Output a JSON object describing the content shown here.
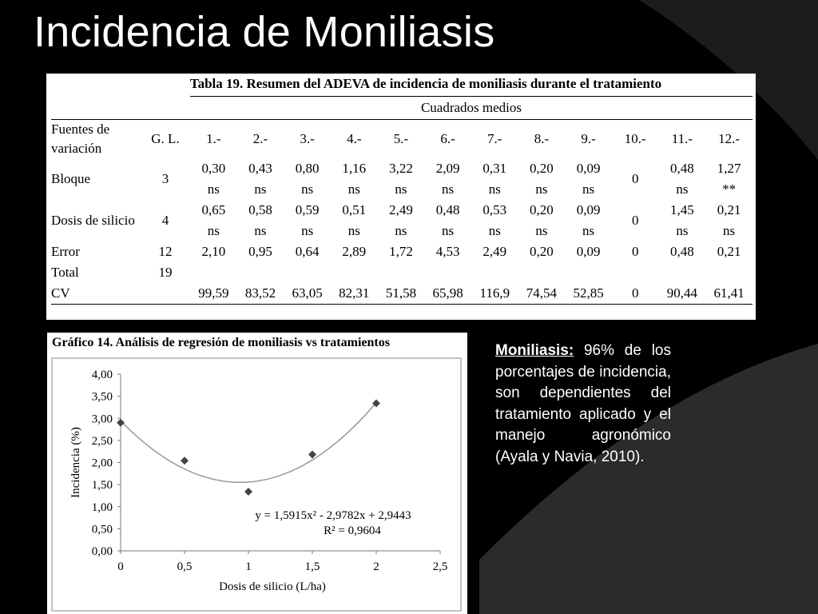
{
  "slide": {
    "title": "Incidencia de Moniliasis"
  },
  "colors": {
    "background": "#000000",
    "swoosh": "#2b2b2b",
    "title_text": "#ffffff",
    "marker": "#444444",
    "trend_line": "#999999"
  },
  "table": {
    "caption": "Tabla 19. Resumen del ADEVA de incidencia de moniliasis durante el tratamiento",
    "group_header": "Cuadrados medios",
    "headers": {
      "source": "Fuentes de variación",
      "df": "G. L.",
      "treatments": [
        "1.-",
        "2.-",
        "3.-",
        "4.-",
        "5.-",
        "6.-",
        "7.-",
        "8.-",
        "9.-",
        "10.-",
        "11.-",
        "12.-"
      ]
    },
    "rows": [
      {
        "source": "Bloque",
        "df": "3",
        "cells": [
          {
            "v": "0,30",
            "s": "ns"
          },
          {
            "v": "0,43",
            "s": "ns"
          },
          {
            "v": "0,80",
            "s": "ns"
          },
          {
            "v": "1,16",
            "s": "ns"
          },
          {
            "v": "3,22",
            "s": "ns"
          },
          {
            "v": "2,09",
            "s": "ns"
          },
          {
            "v": "0,31",
            "s": "ns"
          },
          {
            "v": "0,20",
            "s": "ns"
          },
          {
            "v": "0,09",
            "s": "ns"
          },
          {
            "v": "0",
            "s": ""
          },
          {
            "v": "0,48",
            "s": "ns"
          },
          {
            "v": "1,27",
            "s": "**"
          }
        ]
      },
      {
        "source": "Dosis de silicio",
        "df": "4",
        "cells": [
          {
            "v": "0,65",
            "s": "ns"
          },
          {
            "v": "0,58",
            "s": "ns"
          },
          {
            "v": "0,59",
            "s": "ns"
          },
          {
            "v": "0,51",
            "s": "ns"
          },
          {
            "v": "2,49",
            "s": "ns"
          },
          {
            "v": "0,48",
            "s": "ns"
          },
          {
            "v": "0,53",
            "s": "ns"
          },
          {
            "v": "0,20",
            "s": "ns"
          },
          {
            "v": "0,09",
            "s": "ns"
          },
          {
            "v": "0",
            "s": ""
          },
          {
            "v": "1,45",
            "s": "ns"
          },
          {
            "v": "0,21",
            "s": "ns"
          }
        ]
      },
      {
        "source": "Error",
        "df": "12",
        "cells": [
          {
            "v": "2,10",
            "s": ""
          },
          {
            "v": "0,95",
            "s": ""
          },
          {
            "v": "0,64",
            "s": ""
          },
          {
            "v": "2,89",
            "s": ""
          },
          {
            "v": "1,72",
            "s": ""
          },
          {
            "v": "4,53",
            "s": ""
          },
          {
            "v": "2,49",
            "s": ""
          },
          {
            "v": "0,20",
            "s": ""
          },
          {
            "v": "0,09",
            "s": ""
          },
          {
            "v": "0",
            "s": ""
          },
          {
            "v": "0,48",
            "s": ""
          },
          {
            "v": "0,21",
            "s": ""
          }
        ]
      },
      {
        "source": "Total",
        "df": "19",
        "cells": [
          {
            "v": "",
            "s": ""
          },
          {
            "v": "",
            "s": ""
          },
          {
            "v": "",
            "s": ""
          },
          {
            "v": "",
            "s": ""
          },
          {
            "v": "",
            "s": ""
          },
          {
            "v": "",
            "s": ""
          },
          {
            "v": "",
            "s": ""
          },
          {
            "v": "",
            "s": ""
          },
          {
            "v": "",
            "s": ""
          },
          {
            "v": "",
            "s": ""
          },
          {
            "v": "",
            "s": ""
          },
          {
            "v": "",
            "s": ""
          }
        ]
      },
      {
        "source": "CV",
        "df": "",
        "cells": [
          {
            "v": "99,59",
            "s": ""
          },
          {
            "v": "83,52",
            "s": ""
          },
          {
            "v": "63,05",
            "s": ""
          },
          {
            "v": "82,31",
            "s": ""
          },
          {
            "v": "51,58",
            "s": ""
          },
          {
            "v": "65,98",
            "s": ""
          },
          {
            "v": "116,9",
            "s": ""
          },
          {
            "v": "74,54",
            "s": ""
          },
          {
            "v": "52,85",
            "s": ""
          },
          {
            "v": "0",
            "s": ""
          },
          {
            "v": "90,44",
            "s": ""
          },
          {
            "v": "61,41",
            "s": ""
          }
        ]
      }
    ]
  },
  "chart_data": {
    "type": "scatter",
    "title": "Gráfico 14. Análisis de regresión de moniliasis vs tratamientos",
    "xlabel": "Dosis de silicio (L/ha)",
    "ylabel": "Incidencia (%)",
    "xlim": [
      0,
      2.5
    ],
    "ylim": [
      0,
      4
    ],
    "x_ticks": [
      "0",
      "0,5",
      "1",
      "1,5",
      "2",
      "2,5"
    ],
    "y_ticks": [
      "0,00",
      "0,50",
      "1,00",
      "1,50",
      "2,00",
      "2,50",
      "3,00",
      "3,50",
      "4,00"
    ],
    "grid": false,
    "series": [
      {
        "marker": "diamond",
        "x": [
          0,
          0.5,
          1,
          1.5,
          2
        ],
        "y": [
          2.9,
          2.04,
          1.34,
          2.18,
          3.34
        ]
      }
    ],
    "trendline": {
      "type": "polynomial",
      "coefficients": [
        1.5915,
        -2.9782,
        2.9443
      ],
      "equation": "y = 1,5915x² - 2,9782x + 2,9443",
      "r_squared": "R² = 0,9604"
    }
  },
  "annotation": {
    "label": "Moniliasis:",
    "text": " 96% de los porcentajes de incidencia, son dependientes del tratamiento aplicado y el manejo agronómico (Ayala y Navia, 2010)."
  }
}
